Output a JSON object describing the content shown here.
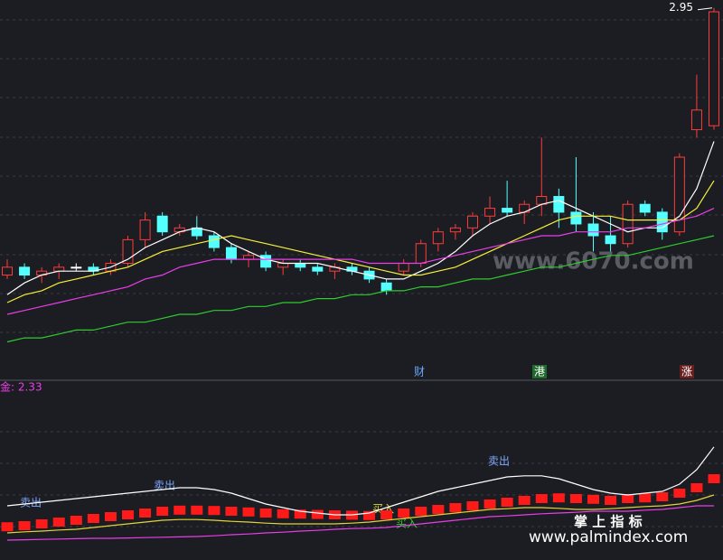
{
  "chart_data": [
    {
      "type": "candlestick",
      "open": [
        2.27,
        2.29,
        2.27,
        2.28,
        2.29,
        2.29,
        2.28,
        2.3,
        2.36,
        2.42,
        2.38,
        2.39,
        2.37,
        2.34,
        2.31,
        2.32,
        2.29,
        2.3,
        2.29,
        2.28,
        2.29,
        2.28,
        2.25,
        2.28,
        2.3,
        2.35,
        2.38,
        2.39,
        2.42,
        2.44,
        2.43,
        2.45,
        2.47,
        2.43,
        2.4,
        2.37,
        2.35,
        2.45,
        2.43,
        2.38,
        2.64,
        2.65
      ],
      "high": [
        2.31,
        2.3,
        2.29,
        2.3,
        2.3,
        2.3,
        2.31,
        2.37,
        2.43,
        2.43,
        2.4,
        2.42,
        2.38,
        2.35,
        2.33,
        2.33,
        2.31,
        2.31,
        2.3,
        2.3,
        2.3,
        2.29,
        2.26,
        2.31,
        2.36,
        2.39,
        2.4,
        2.43,
        2.47,
        2.51,
        2.46,
        2.62,
        2.49,
        2.57,
        2.43,
        2.42,
        2.46,
        2.46,
        2.44,
        2.58,
        2.78,
        2.95
      ],
      "low": [
        2.26,
        2.26,
        2.25,
        2.26,
        2.28,
        2.27,
        2.27,
        2.29,
        2.34,
        2.37,
        2.37,
        2.36,
        2.33,
        2.3,
        2.29,
        2.28,
        2.27,
        2.28,
        2.27,
        2.26,
        2.27,
        2.25,
        2.22,
        2.27,
        2.29,
        2.33,
        2.36,
        2.37,
        2.4,
        2.42,
        2.4,
        2.42,
        2.39,
        2.38,
        2.33,
        2.33,
        2.34,
        2.42,
        2.36,
        2.37,
        2.62,
        2.64
      ],
      "close": [
        2.29,
        2.27,
        2.28,
        2.29,
        2.29,
        2.28,
        2.3,
        2.36,
        2.41,
        2.38,
        2.39,
        2.37,
        2.34,
        2.31,
        2.32,
        2.29,
        2.3,
        2.29,
        2.28,
        2.29,
        2.28,
        2.26,
        2.23,
        2.3,
        2.35,
        2.38,
        2.39,
        2.42,
        2.44,
        2.43,
        2.45,
        2.47,
        2.43,
        2.4,
        2.37,
        2.35,
        2.45,
        2.43,
        2.38,
        2.57,
        2.69,
        2.94
      ],
      "up_color": "#ff3b3b",
      "down_color": "#54ffff",
      "flat_color": "#ffffff",
      "series": [
        {
          "color": "#ffffff",
          "values": [
            2.22,
            2.25,
            2.27,
            2.28,
            2.28,
            2.28,
            2.29,
            2.31,
            2.34,
            2.36,
            2.38,
            2.39,
            2.38,
            2.35,
            2.33,
            2.31,
            2.3,
            2.3,
            2.3,
            2.29,
            2.28,
            2.27,
            2.26,
            2.26,
            2.28,
            2.3,
            2.33,
            2.37,
            2.4,
            2.42,
            2.43,
            2.45,
            2.46,
            2.44,
            2.42,
            2.4,
            2.38,
            2.39,
            2.39,
            2.42,
            2.49,
            2.61
          ]
        },
        {
          "color": "#f5f03a",
          "values": [
            2.2,
            2.22,
            2.23,
            2.25,
            2.26,
            2.27,
            2.28,
            2.29,
            2.31,
            2.33,
            2.34,
            2.35,
            2.36,
            2.37,
            2.36,
            2.35,
            2.34,
            2.33,
            2.32,
            2.31,
            2.3,
            2.29,
            2.28,
            2.27,
            2.27,
            2.28,
            2.29,
            2.31,
            2.33,
            2.35,
            2.37,
            2.39,
            2.41,
            2.42,
            2.42,
            2.42,
            2.41,
            2.41,
            2.41,
            2.41,
            2.44,
            2.51
          ]
        },
        {
          "color": "#e83ee8",
          "values": [
            2.17,
            2.18,
            2.19,
            2.2,
            2.21,
            2.22,
            2.23,
            2.24,
            2.26,
            2.27,
            2.29,
            2.3,
            2.31,
            2.31,
            2.31,
            2.31,
            2.31,
            2.31,
            2.31,
            2.31,
            2.31,
            2.3,
            2.3,
            2.3,
            2.3,
            2.31,
            2.32,
            2.33,
            2.34,
            2.35,
            2.36,
            2.37,
            2.37,
            2.38,
            2.38,
            2.38,
            2.39,
            2.39,
            2.4,
            2.41,
            2.42,
            2.44
          ]
        },
        {
          "color": "#2ecc2e",
          "values": [
            2.1,
            2.11,
            2.11,
            2.12,
            2.13,
            2.13,
            2.14,
            2.15,
            2.15,
            2.16,
            2.17,
            2.17,
            2.18,
            2.18,
            2.19,
            2.19,
            2.2,
            2.2,
            2.21,
            2.21,
            2.22,
            2.22,
            2.23,
            2.23,
            2.24,
            2.24,
            2.25,
            2.26,
            2.26,
            2.27,
            2.28,
            2.29,
            2.29,
            2.3,
            2.31,
            2.32,
            2.32,
            2.33,
            2.34,
            2.35,
            2.36,
            2.37
          ]
        }
      ],
      "ylim": [
        2.0,
        2.97
      ],
      "event_tags": [
        "财",
        "港",
        "涨"
      ]
    },
    {
      "type": "indicator",
      "title": "金: 2.33",
      "series": [
        {
          "color": "#ff1a1a",
          "style": "block",
          "values": [
            0.42,
            0.45,
            0.5,
            0.55,
            0.6,
            0.65,
            0.7,
            0.75,
            0.8,
            0.85,
            0.88,
            0.88,
            0.87,
            0.85,
            0.83,
            0.8,
            0.78,
            0.77,
            0.76,
            0.75,
            0.74,
            0.73,
            0.75,
            0.8,
            0.85,
            0.9,
            0.95,
            1.0,
            1.05,
            1.1,
            1.15,
            1.2,
            1.22,
            1.2,
            1.18,
            1.15,
            1.2,
            1.22,
            1.25,
            1.35,
            1.5,
            1.75
          ]
        },
        {
          "color": "#ffffff",
          "values": [
            1.0,
            1.05,
            1.1,
            1.15,
            1.2,
            1.25,
            1.3,
            1.35,
            1.4,
            1.45,
            1.5,
            1.5,
            1.45,
            1.35,
            1.2,
            1.05,
            0.95,
            0.85,
            0.8,
            0.75,
            0.75,
            0.8,
            0.95,
            1.1,
            1.25,
            1.4,
            1.5,
            1.6,
            1.7,
            1.8,
            1.83,
            1.83,
            1.75,
            1.6,
            1.45,
            1.35,
            1.3,
            1.35,
            1.4,
            1.6,
            2.0,
            2.63
          ]
        },
        {
          "color": "#e0d43a",
          "values": [
            0.25,
            0.28,
            0.3,
            0.33,
            0.35,
            0.4,
            0.45,
            0.5,
            0.55,
            0.6,
            0.62,
            0.62,
            0.6,
            0.57,
            0.55,
            0.52,
            0.5,
            0.5,
            0.5,
            0.5,
            0.52,
            0.55,
            0.6,
            0.65,
            0.7,
            0.75,
            0.8,
            0.85,
            0.9,
            0.92,
            0.95,
            0.95,
            0.93,
            0.9,
            0.9,
            0.92,
            0.95,
            0.98,
            1.0,
            1.05,
            1.15,
            1.3
          ]
        },
        {
          "color": "#e83ee8",
          "values": [
            0.05,
            0.06,
            0.07,
            0.08,
            0.09,
            0.1,
            0.1,
            0.11,
            0.12,
            0.13,
            0.14,
            0.15,
            0.17,
            0.2,
            0.22,
            0.25,
            0.27,
            0.3,
            0.32,
            0.35,
            0.37,
            0.38,
            0.4,
            0.45,
            0.5,
            0.55,
            0.6,
            0.65,
            0.7,
            0.72,
            0.75,
            0.78,
            0.8,
            0.82,
            0.85,
            0.85,
            0.85,
            0.88,
            0.9,
            0.95,
            1.0,
            1.0
          ]
        }
      ],
      "ylim": [
        0,
        4.5
      ],
      "annotations": [
        "卖出",
        "卖出",
        "卖出",
        "买入",
        "买入"
      ]
    }
  ],
  "watermarks": [
    "www.6070.com",
    "掌 上 指 标",
    "www.palmindex.com"
  ]
}
